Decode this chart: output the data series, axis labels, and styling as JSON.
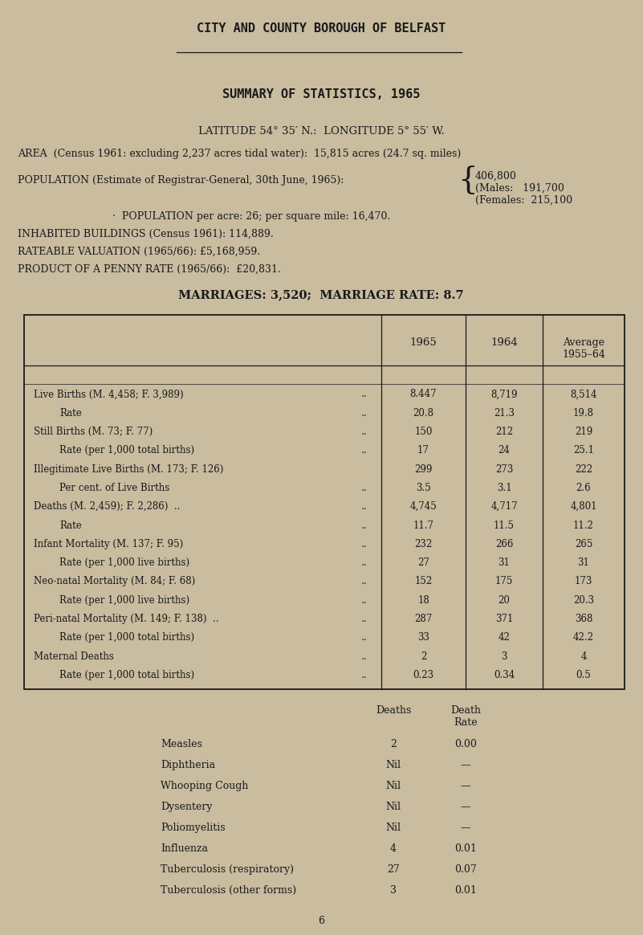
{
  "bg_color": "#c9bc9f",
  "text_color": "#1a1a1a",
  "title": "CITY AND COUNTY BOROUGH OF BELFAST",
  "subtitle": "SUMMARY OF STATISTICS, 1965",
  "latitude_line": "LATITUDE 54° 35′ N.:  LONGITUDE 5° 55′ W.",
  "area_line": "AREA  (Census 1961: excluding 2,237 acres tidal water):  15,815 acres (24.7 sq. miles)",
  "population_label": "POPULATION (Estimate of Registrar-General, 30th June, 1965):",
  "population_total": "406,800",
  "population_males_label": "(Males:",
  "population_males_val": "191,700",
  "population_females_label": "(Females:",
  "population_females_val": "215,100",
  "population_density": "·  POPULATION per acre: 26; per square mile: 16,470.",
  "inhabited": "INHABITED BUILDINGS (Census 1961): 114,889.",
  "rateable": "RATEABLE VALUATION (1965/66): £5,168,959.",
  "product": "PRODUCT OF A PENNY RATE (1965/66):  £20,831.",
  "marriages": "MARRIAGES: 3,520;  MARRIAGE RATE: 8.7",
  "col_headers": [
    "1965",
    "1964",
    "Average\n1955–64"
  ],
  "table_rows": [
    [
      "Live Births (M. 4,458; F. 3,989)",
      "..",
      "8.447",
      "8,719",
      "8,514"
    ],
    [
      "    Rate",
      "..",
      "20.8",
      "21.3",
      "19.8"
    ],
    [
      "Still Births (M. 73; F. 77)",
      "..",
      "150",
      "212",
      "219"
    ],
    [
      "    Rate (per 1,000 total births)",
      "..",
      "17",
      "24",
      "25.1"
    ],
    [
      "Illegitimate Live Births (M. 173; F. 126)",
      "",
      "299",
      "273",
      "222"
    ],
    [
      "    Per cent. of Live Births",
      "..",
      "3.5",
      "3.1",
      "2.6"
    ],
    [
      "Deaths (M. 2,459); F. 2,286)  ..",
      "..",
      "4,745",
      "4,717",
      "4,801"
    ],
    [
      "    Rate",
      "..",
      "11.7",
      "11.5",
      "11.2"
    ],
    [
      "Infant Mortality (M. 137; F. 95)",
      "..",
      "232",
      "266",
      "265"
    ],
    [
      "    Rate (per 1,000 live births)",
      "..",
      "27",
      "31",
      "31"
    ],
    [
      "Neo-natal Mortality (M. 84; F. 68)",
      "..",
      "152",
      "175",
      "173"
    ],
    [
      "    Rate (per 1,000 live births)",
      "..",
      "18",
      "20",
      "20.3"
    ],
    [
      "Peri-natal Mortality (M. 149; F. 138)  ..",
      "..",
      "287",
      "371",
      "368"
    ],
    [
      "    Rate (per 1,000 total births)",
      "..",
      "33",
      "42",
      "42.2"
    ],
    [
      "Maternal Deaths",
      "..",
      "2",
      "3",
      "4"
    ],
    [
      "    Rate (per 1,000 total births)",
      "..",
      "0.23",
      "0.34",
      "0.5"
    ]
  ],
  "disease_headers": [
    "Deaths",
    "Death\nRate"
  ],
  "disease_rows": [
    [
      "Measles",
      "2",
      "0.00"
    ],
    [
      "Diphtheria",
      "Nil",
      "—"
    ],
    [
      "Whooping Cough",
      "Nil",
      "—"
    ],
    [
      "Dysentery",
      "Nil",
      "—"
    ],
    [
      "Poliomyelitis",
      "Nil",
      "—"
    ],
    [
      "Influenza",
      "4",
      "0.01"
    ],
    [
      "Tuberculosis (respiratory)",
      "27",
      "0.07"
    ],
    [
      "Tuberculosis (other forms)",
      "3",
      "0.01"
    ]
  ],
  "page_number": "6"
}
